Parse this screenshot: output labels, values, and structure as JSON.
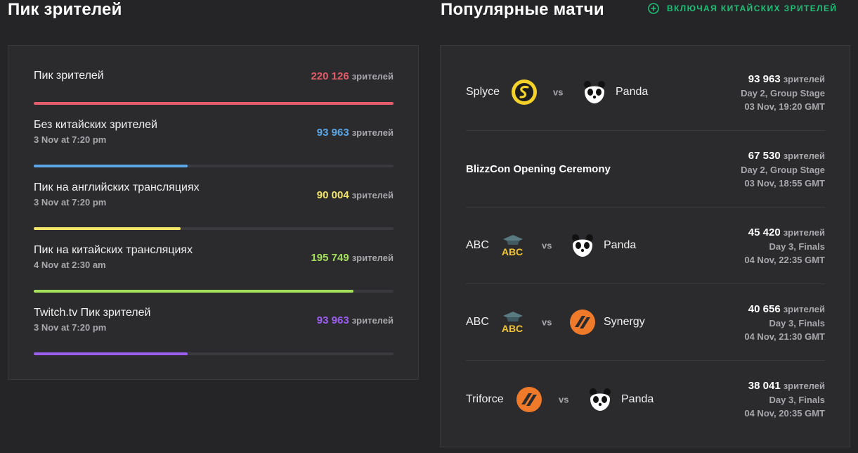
{
  "left": {
    "title": "Пик зрителей",
    "unit": "зрителей",
    "stats": [
      {
        "label": "Пик зрителей",
        "date": "",
        "value": "220 126",
        "color": "#e35d6a",
        "fill": 1.0
      },
      {
        "label": "Без китайских зрителей",
        "date": "3 Nov at 7:20 pm",
        "value": "93 963",
        "color": "#5aa6e6",
        "fill": 0.427
      },
      {
        "label": "Пик на английских трансляциях",
        "date": "3 Nov at 7:20 pm",
        "value": "90 004",
        "color": "#f2e46b",
        "fill": 0.409
      },
      {
        "label": "Пик на китайских трансляциях",
        "date": "4 Nov at 2:30 am",
        "value": "195 749",
        "color": "#a4e05a",
        "fill": 0.889
      },
      {
        "label": "Twitch.tv Пик зрителей",
        "date": "3 Nov at 7:20 pm",
        "value": "93 963",
        "color": "#9b5ef0",
        "fill": 0.427
      }
    ]
  },
  "right": {
    "title": "Популярные матчи",
    "toggle_label": "Включая китайских зрителей",
    "vs": "vs",
    "unit": "зрителей",
    "matches": [
      {
        "team1": "Splyce",
        "logo1": "splyce-logo",
        "team2": "Panda",
        "logo2": "panda-logo",
        "event": "",
        "viewers": "93 963",
        "stage": "Day 2, Group Stage",
        "time": "03 Nov, 19:20 GMT"
      },
      {
        "team1": "",
        "logo1": "",
        "team2": "",
        "logo2": "",
        "event": "BlizzCon Opening Ceremony",
        "viewers": "67 530",
        "stage": "Day 2, Group Stage",
        "time": "03 Nov, 18:55 GMT"
      },
      {
        "team1": "ABC",
        "logo1": "abc-logo",
        "team2": "Panda",
        "logo2": "panda-logo",
        "event": "",
        "viewers": "45 420",
        "stage": "Day 3, Finals",
        "time": "04 Nov, 22:35 GMT"
      },
      {
        "team1": "ABC",
        "logo1": "abc-logo",
        "team2": "Synergy",
        "logo2": "synergy-logo",
        "event": "",
        "viewers": "40 656",
        "stage": "Day 3, Finals",
        "time": "04 Nov, 21:30 GMT"
      },
      {
        "team1": "Triforce",
        "logo1": "triforce-logo",
        "team2": "Panda",
        "logo2": "panda-logo",
        "event": "",
        "viewers": "38 041",
        "stage": "Day 3, Finals",
        "time": "04 Nov, 20:35 GMT"
      }
    ]
  }
}
